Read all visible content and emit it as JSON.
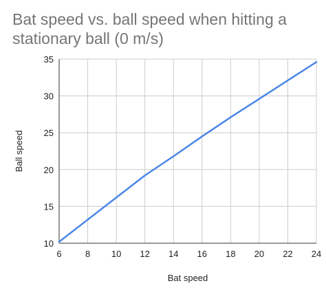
{
  "chart_data": {
    "type": "line",
    "title": "Bat speed vs. ball speed when hitting a stationary ball (0 m/s)",
    "xlabel": "Bat speed",
    "ylabel": "Ball speed",
    "xlim": [
      6,
      24
    ],
    "ylim": [
      10,
      35
    ],
    "xticks": [
      6,
      8,
      10,
      12,
      14,
      16,
      18,
      20,
      22,
      24
    ],
    "yticks": [
      10,
      15,
      20,
      25,
      30,
      35
    ],
    "grid": true,
    "legend": "none",
    "series": [
      {
        "color": "#4a86e8",
        "x": [
          6,
          8,
          10,
          12,
          14,
          16,
          18,
          20,
          22,
          24
        ],
        "y": [
          10.2,
          13.2,
          16.2,
          19.2,
          21.8,
          24.5,
          27.1,
          29.6,
          32.1,
          34.6
        ]
      }
    ]
  }
}
